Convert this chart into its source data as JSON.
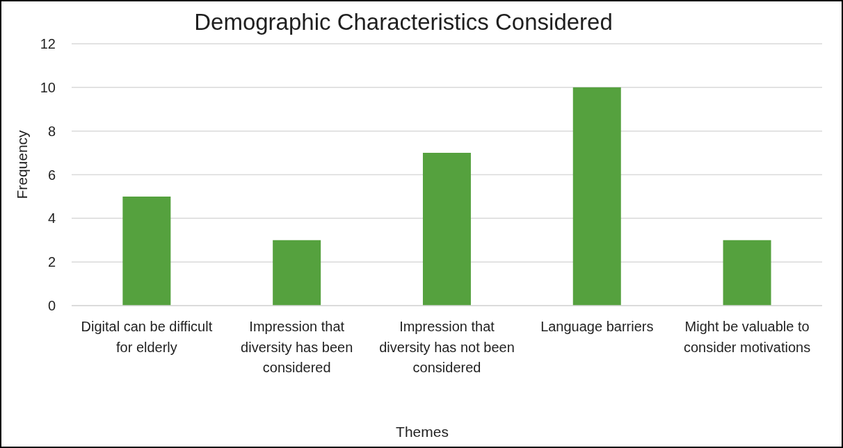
{
  "chart_data": {
    "type": "bar",
    "title": "Demographic Characteristics Considered",
    "xlabel": "Themes",
    "ylabel": "Frequency",
    "categories": [
      "Digital can be difficult for elderly",
      "Impression that diversity has been considered",
      "Impression that diversity has not been considered",
      "Language barriers",
      "Might be valuable to consider motivations"
    ],
    "values": [
      5,
      3,
      7,
      10,
      3
    ],
    "color": "#55a13e",
    "ylim": [
      0,
      12
    ],
    "yticks": [
      0,
      2,
      4,
      6,
      8,
      10,
      12
    ],
    "grid": "y"
  }
}
